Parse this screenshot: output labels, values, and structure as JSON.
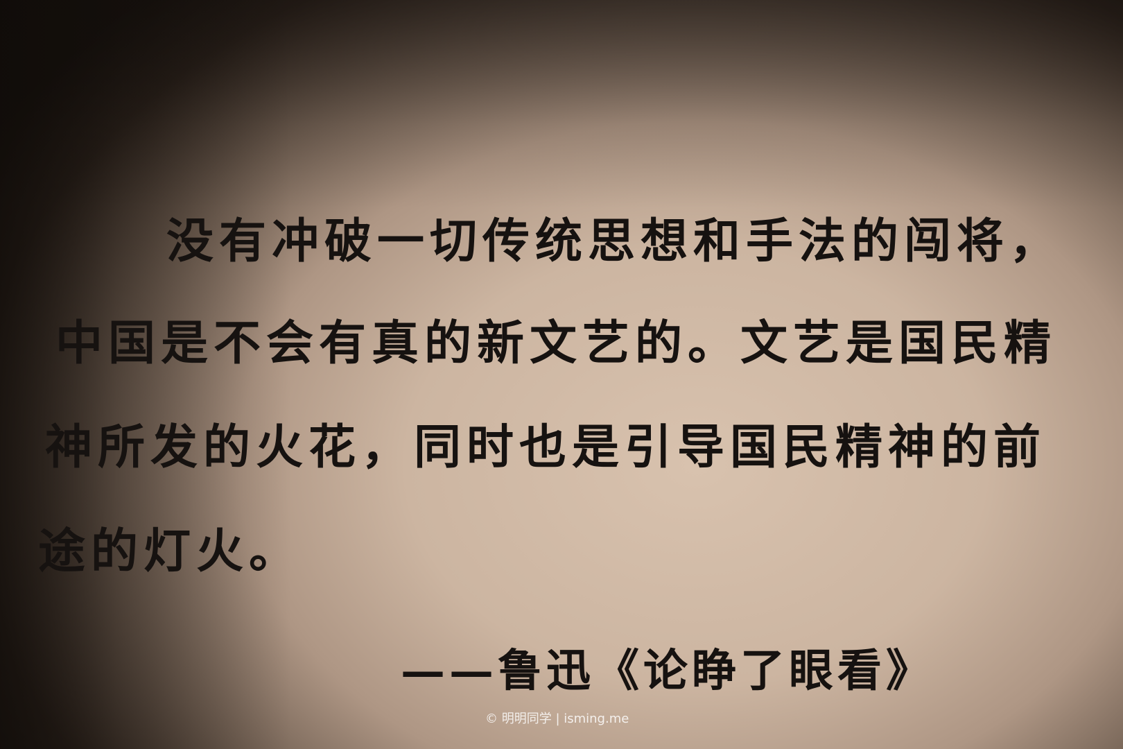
{
  "quote": {
    "lines": [
      "没有冲破一切传统思想和手法的闯将，",
      "中国是不会有真的新文艺的。文艺是国民精",
      "神所发的火花，同时也是引导国民精神的前",
      "途的灯火。"
    ],
    "attribution": "——鲁迅《论睁了眼看》"
  },
  "watermark": "© 明明同学 | isming.me"
}
